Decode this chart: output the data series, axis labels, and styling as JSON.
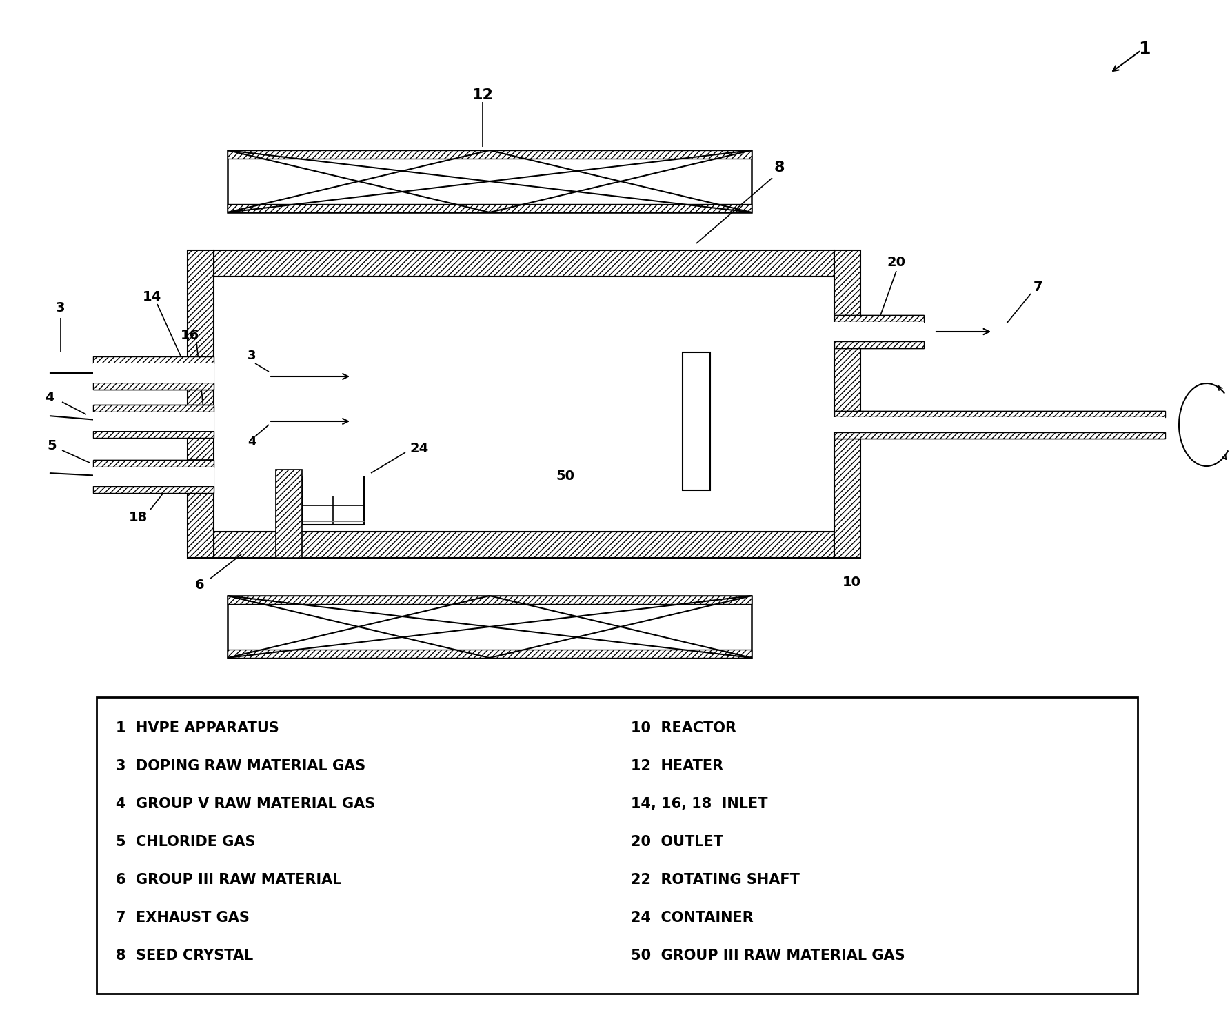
{
  "background_color": "#ffffff",
  "figsize": [
    17.84,
    15.01
  ],
  "dpi": 100,
  "legend_left": [
    "1  HVPE APPARATUS",
    "3  DOPING RAW MATERIAL GAS",
    "4  GROUP V RAW MATERIAL GAS",
    "5  CHLORIDE GAS",
    "6  GROUP III RAW MATERIAL",
    "7  EXHAUST GAS",
    "8  SEED CRYSTAL"
  ],
  "legend_right": [
    "10  REACTOR",
    "12  HEATER",
    "14, 16, 18  INLET",
    "20  OUTLET",
    "22  ROTATING SHAFT",
    "24  CONTAINER",
    "50  GROUP III RAW MATERIAL GAS"
  ]
}
